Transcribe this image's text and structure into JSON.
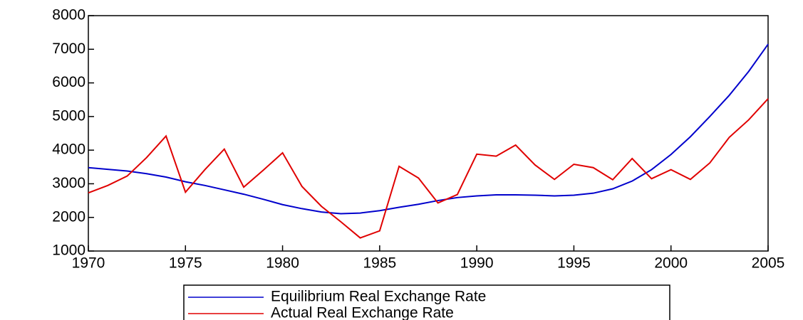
{
  "chart_data": {
    "type": "line",
    "x": [
      1970,
      1971,
      1972,
      1973,
      1974,
      1975,
      1976,
      1977,
      1978,
      1979,
      1980,
      1981,
      1982,
      1983,
      1984,
      1985,
      1986,
      1987,
      1988,
      1989,
      1990,
      1991,
      1992,
      1993,
      1994,
      1995,
      1996,
      1997,
      1998,
      1999,
      2000,
      2001,
      2002,
      2003,
      2004,
      2005
    ],
    "series": [
      {
        "name": "Equilibrium Real Exchange Rate",
        "color": "#0000cc",
        "values": [
          3480,
          3430,
          3380,
          3300,
          3200,
          3060,
          2950,
          2820,
          2690,
          2540,
          2380,
          2260,
          2160,
          2110,
          2130,
          2200,
          2300,
          2390,
          2500,
          2590,
          2640,
          2670,
          2670,
          2660,
          2640,
          2660,
          2720,
          2850,
          3080,
          3420,
          3870,
          4400,
          5000,
          5630,
          6340,
          7150
        ]
      },
      {
        "name": "Actual Real Exchange Rate",
        "color": "#e00000",
        "values": [
          2730,
          2950,
          3230,
          3780,
          4420,
          2750,
          3420,
          4030,
          2900,
          3400,
          3920,
          2920,
          2330,
          1870,
          1390,
          1600,
          3520,
          3170,
          2430,
          2680,
          3880,
          3820,
          4150,
          3560,
          3130,
          3580,
          3480,
          3120,
          3750,
          3150,
          3420,
          3130,
          3620,
          4380,
          4900,
          5530
        ]
      }
    ],
    "xlim": [
      1970,
      2005
    ],
    "xticks": [
      1970,
      1975,
      1980,
      1985,
      1990,
      1995,
      2000,
      2005
    ],
    "ylim": [
      1000,
      8000
    ],
    "yticks": [
      1000,
      2000,
      3000,
      4000,
      5000,
      6000,
      7000,
      8000
    ],
    "grid": false,
    "legend": "bottom"
  }
}
